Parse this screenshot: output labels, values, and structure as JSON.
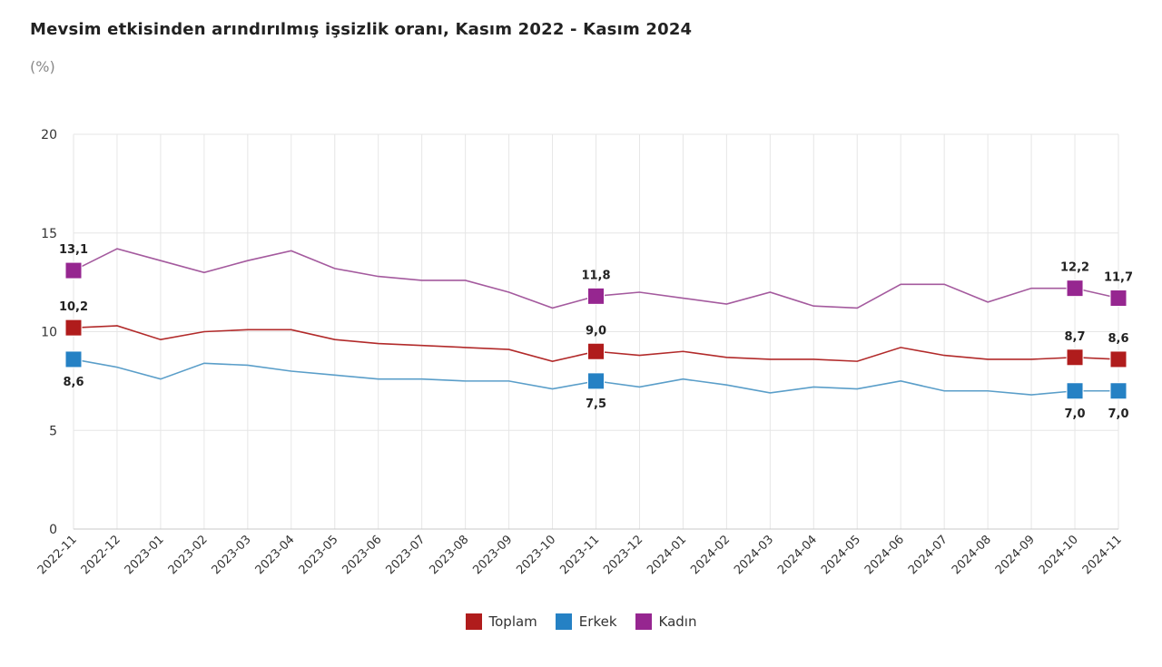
{
  "title": "Mevsim etkisinden arındırılmış işsizlik oranı, Kasım 2022 - Kasım 2024",
  "subtitle": "(%)",
  "chart_data": {
    "type": "line",
    "categories": [
      "2022-11",
      "2022-12",
      "2023-01",
      "2023-02",
      "2023-03",
      "2023-04",
      "2023-05",
      "2023-06",
      "2023-07",
      "2023-08",
      "2023-09",
      "2023-10",
      "2023-11",
      "2023-12",
      "2024-01",
      "2024-02",
      "2024-03",
      "2024-04",
      "2024-05",
      "2024-06",
      "2024-07",
      "2024-08",
      "2024-09",
      "2024-10",
      "2024-11"
    ],
    "ylim": [
      0,
      20
    ],
    "yticks": [
      "0",
      "5",
      "10",
      "15",
      "20"
    ],
    "grid": true,
    "legend_position": "bottom",
    "series": [
      {
        "name": "Toplam",
        "color": "#b22a2a",
        "marker_color": "#b01c1c",
        "values": [
          10.2,
          10.3,
          9.6,
          10.0,
          10.1,
          10.1,
          9.6,
          9.4,
          9.3,
          9.2,
          9.1,
          8.5,
          9.0,
          8.8,
          9.0,
          8.7,
          8.6,
          8.6,
          8.5,
          9.2,
          8.8,
          8.6,
          8.6,
          8.7,
          8.6
        ],
        "labels": {
          "0": "10,2",
          "12": "9,0",
          "23": "8,7",
          "24": "8,6"
        },
        "label_side": "above"
      },
      {
        "name": "Erkek",
        "color": "#5a9ec9",
        "marker_color": "#2581c4",
        "values": [
          8.6,
          8.2,
          7.6,
          8.4,
          8.3,
          8.0,
          7.8,
          7.6,
          7.6,
          7.5,
          7.5,
          7.1,
          7.5,
          7.2,
          7.6,
          7.3,
          6.9,
          7.2,
          7.1,
          7.5,
          7.0,
          7.0,
          6.8,
          7.0,
          7.0
        ],
        "labels": {
          "0": "8,6",
          "12": "7,5",
          "23": "7,0",
          "24": "7,0"
        },
        "label_side": "below"
      },
      {
        "name": "Kadın",
        "color": "#a45a9e",
        "marker_color": "#962690",
        "values": [
          13.1,
          14.2,
          13.6,
          13.0,
          13.6,
          14.1,
          13.2,
          12.8,
          12.6,
          12.6,
          12.0,
          11.2,
          11.8,
          12.0,
          11.7,
          11.4,
          12.0,
          11.3,
          11.2,
          12.4,
          12.4,
          11.5,
          12.2,
          12.2,
          11.7
        ],
        "labels": {
          "0": "13,1",
          "12": "11,8",
          "23": "12,2",
          "24": "11,7"
        },
        "label_side": "above"
      }
    ]
  }
}
